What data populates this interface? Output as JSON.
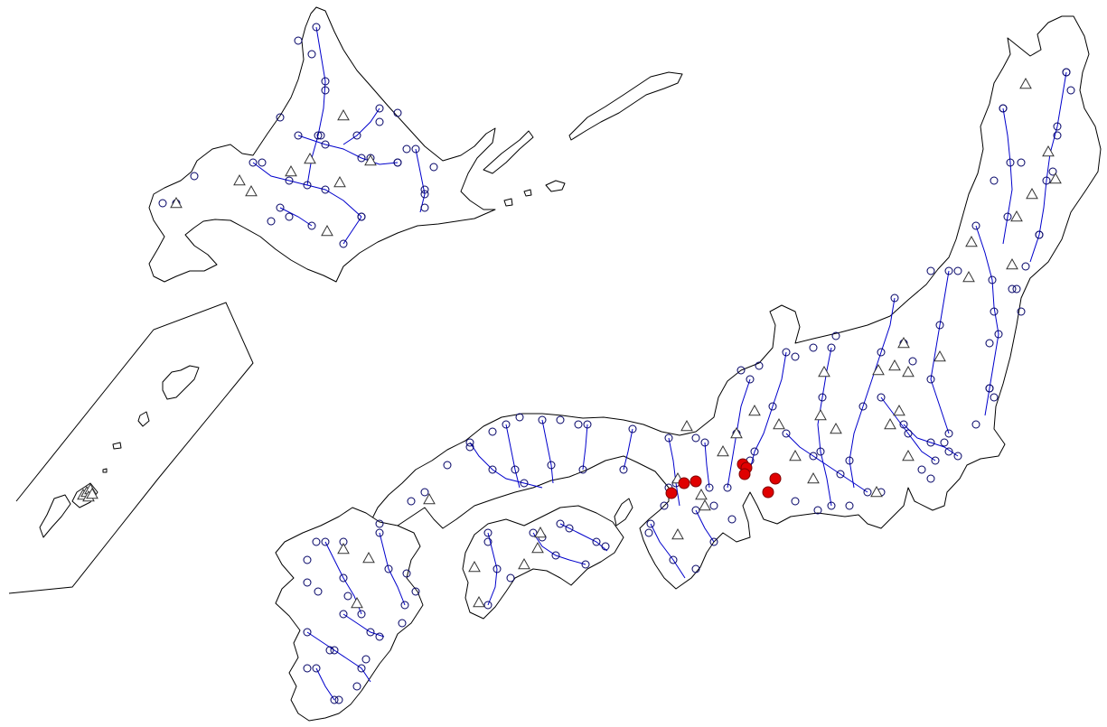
{
  "map": {
    "colors": {
      "background": "#ffffff",
      "coastline": "#000000",
      "river": "#0000cc",
      "gauge_station": "#000066",
      "highlight_circle": "#e00000",
      "triangle_default": "#ffffff",
      "triangle_green": "#00cc00",
      "triangle_cyan": "#00e0e0"
    },
    "symbols": {
      "river": "line",
      "gauge_station": "open-circle",
      "site": "triangle",
      "highlight": "filled-circle"
    }
  }
}
